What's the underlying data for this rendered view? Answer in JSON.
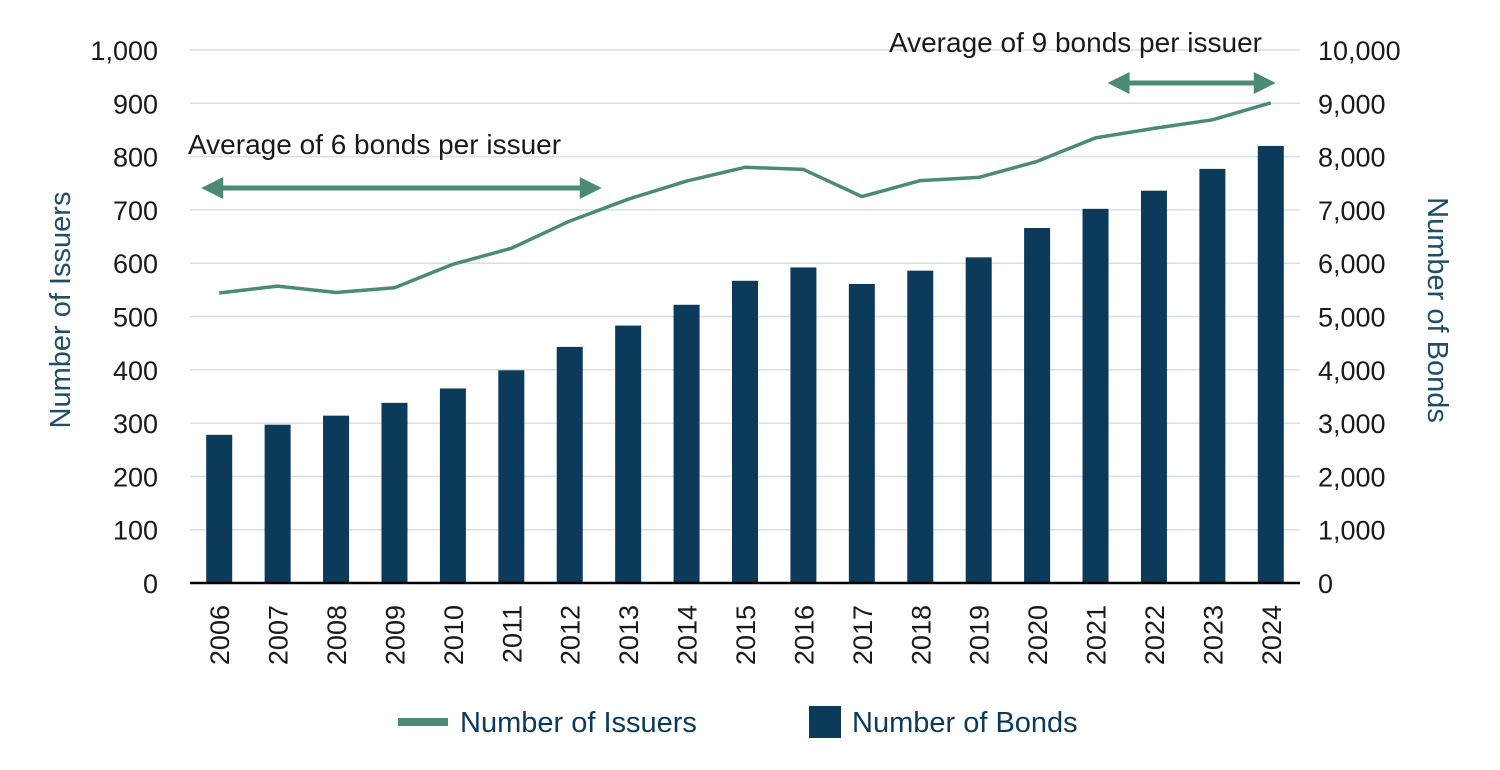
{
  "chart_data": {
    "type": "bar",
    "categories": [
      "2006",
      "2007",
      "2008",
      "2009",
      "2010",
      "2011",
      "2012",
      "2013",
      "2014",
      "2015",
      "2016",
      "2017",
      "2018",
      "2019",
      "2020",
      "2021",
      "2022",
      "2023",
      "2024"
    ],
    "series": [
      {
        "name": "Number of Bonds",
        "type": "bar",
        "axis": "right",
        "color": "#0c3a5a",
        "values": [
          2780,
          2970,
          3140,
          3380,
          3650,
          3990,
          4430,
          4830,
          5220,
          5670,
          5920,
          5610,
          5860,
          6110,
          6660,
          7020,
          7360,
          7770,
          8200
        ]
      },
      {
        "name": "Number of Issuers",
        "type": "line",
        "axis": "left",
        "color": "#4a8a76",
        "values": [
          544,
          557,
          545,
          554,
          598,
          628,
          679,
          720,
          754,
          780,
          776,
          725,
          755,
          761,
          791,
          835,
          853,
          869,
          901
        ]
      }
    ],
    "y_left": {
      "label": "Number of Issuers",
      "min": 0,
      "max": 1000,
      "ticks": [
        "0",
        "100",
        "200",
        "300",
        "400",
        "500",
        "600",
        "700",
        "800",
        "900",
        "1,000"
      ]
    },
    "y_right": {
      "label": "Number of Bonds",
      "min": 0,
      "max": 10000,
      "ticks": [
        "0",
        "1,000",
        "2,000",
        "3,000",
        "4,000",
        "5,000",
        "6,000",
        "7,000",
        "8,000",
        "9,000",
        "10,000"
      ]
    },
    "annotations": [
      {
        "text": "Average of 6 bonds per issuer",
        "arrow_from": "2006",
        "arrow_to": "2012"
      },
      {
        "text": "Average of 9 bonds per issuer",
        "arrow_from": "2021",
        "arrow_to": "2024"
      }
    ],
    "grid": true,
    "legend": "bottom"
  },
  "colors": {
    "bars": "#0c3a5a",
    "line": "#4a8a76",
    "arrow": "#4a8a76",
    "grid": "#d6e0e6"
  }
}
